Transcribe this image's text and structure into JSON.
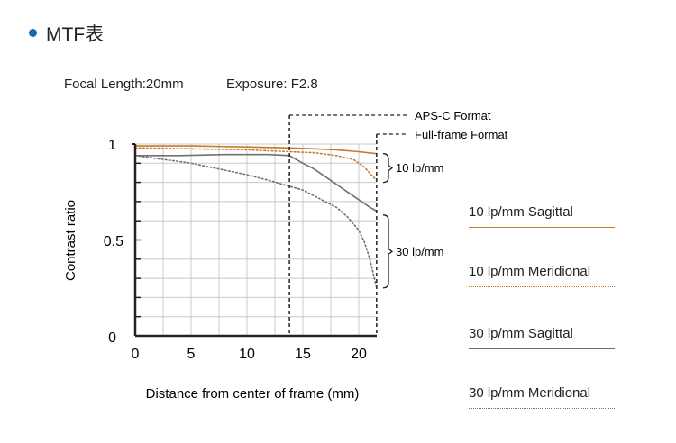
{
  "header": {
    "title": "MTF表",
    "bullet_color": "#1565b8"
  },
  "info": {
    "focal_length": "Focal Length:20mm",
    "exposure": "Exposure: F2.8"
  },
  "colors": {
    "sagittal_10": "#c47a2c",
    "meridional_10": "#c47a2c",
    "sagittal_30": "#707070",
    "meridional_30": "#707070",
    "grid": "#c8c8c8",
    "axis": "#222222"
  },
  "chart_data": {
    "type": "line",
    "title": "",
    "xlabel": "Distance from center of frame (mm)",
    "ylabel": "Contrast ratio",
    "xlim": [
      0,
      21.6
    ],
    "ylim": [
      0,
      1
    ],
    "x_ticks": [
      "0",
      "5",
      "10",
      "15",
      "20"
    ],
    "y_ticks": [
      "0",
      "0.5",
      "1"
    ],
    "grid": true,
    "legend_placement": "right",
    "markers": [
      {
        "label": "APS-C Format",
        "x": 13.8
      },
      {
        "label": "Full-frame Format",
        "x": 21.6
      }
    ],
    "groups": [
      {
        "label": "10 lp/mm",
        "y_range": [
          0.8,
          0.95
        ]
      },
      {
        "label": "30 lp/mm",
        "y_range": [
          0.25,
          0.63
        ]
      }
    ],
    "series": [
      {
        "name": "10 lp/mm Sagittal",
        "style": "solid",
        "color": "#c47a2c",
        "x": [
          0,
          5,
          10,
          13.8,
          16,
          18,
          20,
          21.6
        ],
        "y": [
          0.99,
          0.99,
          0.985,
          0.98,
          0.975,
          0.97,
          0.96,
          0.95
        ]
      },
      {
        "name": "10 lp/mm Meridional",
        "style": "dotted",
        "color": "#c47a2c",
        "x": [
          0,
          5,
          10,
          13.8,
          16,
          18,
          19.5,
          20.5,
          21.6
        ],
        "y": [
          0.98,
          0.975,
          0.97,
          0.96,
          0.955,
          0.94,
          0.92,
          0.88,
          0.81
        ]
      },
      {
        "name": "30 lp/mm Sagittal",
        "style": "solid",
        "color": "#707070",
        "x": [
          0,
          4,
          8,
          12,
          13.8,
          15,
          16,
          17,
          18,
          19,
          20,
          21,
          21.6
        ],
        "y": [
          0.94,
          0.94,
          0.945,
          0.945,
          0.94,
          0.9,
          0.87,
          0.83,
          0.79,
          0.75,
          0.71,
          0.67,
          0.65
        ]
      },
      {
        "name": "30 lp/mm Meridional",
        "style": "dotted",
        "color": "#707070",
        "x": [
          0,
          2.5,
          5,
          7.5,
          10,
          12,
          13.8,
          15,
          16,
          17,
          18,
          19,
          20,
          20.5,
          21,
          21.6
        ],
        "y": [
          0.94,
          0.92,
          0.9,
          0.87,
          0.84,
          0.81,
          0.78,
          0.76,
          0.73,
          0.7,
          0.67,
          0.62,
          0.55,
          0.49,
          0.4,
          0.25
        ]
      }
    ]
  }
}
